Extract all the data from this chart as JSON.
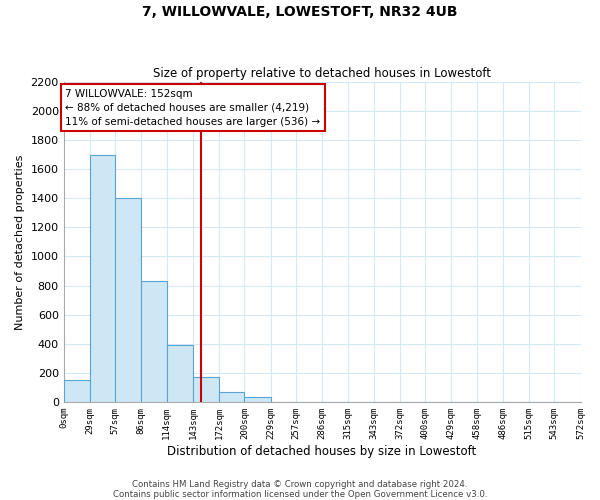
{
  "title": "7, WILLOWVALE, LOWESTOFT, NR32 4UB",
  "subtitle": "Size of property relative to detached houses in Lowestoft",
  "xlabel": "Distribution of detached houses by size in Lowestoft",
  "ylabel": "Number of detached properties",
  "bar_edges": [
    0,
    29,
    57,
    86,
    114,
    143,
    172,
    200,
    229,
    257,
    286,
    315,
    343,
    372,
    400,
    429,
    458,
    486,
    515,
    543,
    572
  ],
  "bar_heights": [
    150,
    1700,
    1400,
    830,
    390,
    170,
    65,
    30,
    0,
    0,
    0,
    0,
    0,
    0,
    0,
    0,
    0,
    0,
    0,
    0
  ],
  "bar_color": "#cde7f5",
  "bar_edge_color": "#5ba3d0",
  "vline_x": 152,
  "vline_color": "#cc0000",
  "ylim": [
    0,
    2200
  ],
  "yticks": [
    0,
    200,
    400,
    600,
    800,
    1000,
    1200,
    1400,
    1600,
    1800,
    2000,
    2200
  ],
  "xtick_labels": [
    "0sqm",
    "29sqm",
    "57sqm",
    "86sqm",
    "114sqm",
    "143sqm",
    "172sqm",
    "200sqm",
    "229sqm",
    "257sqm",
    "286sqm",
    "315sqm",
    "343sqm",
    "372sqm",
    "400sqm",
    "429sqm",
    "458sqm",
    "486sqm",
    "515sqm",
    "543sqm",
    "572sqm"
  ],
  "annotation_title": "7 WILLOWVALE: 152sqm",
  "annotation_line1": "← 88% of detached houses are smaller (4,219)",
  "annotation_line2": "11% of semi-detached houses are larger (536) →",
  "annotation_box_color": "#ffffff",
  "annotation_box_edge": "#cc0000",
  "footnote1": "Contains HM Land Registry data © Crown copyright and database right 2024.",
  "footnote2": "Contains public sector information licensed under the Open Government Licence v3.0.",
  "grid_color": "#d5e8f5",
  "background_color": "#ffffff"
}
